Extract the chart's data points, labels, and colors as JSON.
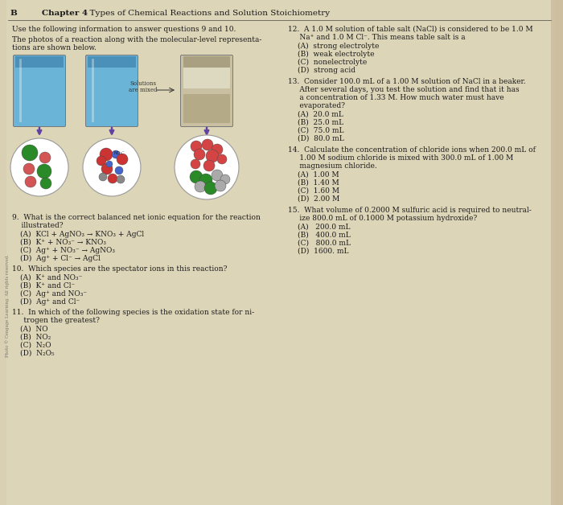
{
  "page_bg": "#ddd5b8",
  "text_color": "#1a1a1a",
  "header": {
    "left_bold": "B",
    "chapter_bold": "Chapter 4",
    "chapter_normal": "  Types of Chemical Reactions and Solution Stoichiometry"
  },
  "left_intro1": "Use the following information to answer questions 9 and 10.",
  "left_intro2a": "The photos of a reaction along with the molecular-level representa-",
  "left_intro2b": "tions are shown below.",
  "q9_stem1": "9.  What is the correct balanced net ionic equation for the reaction",
  "q9_stem2": "    illustrated?",
  "q9_a": "(A)  KCl + AgNO₃ → KNO₃ + AgCl",
  "q9_b": "(B)  K⁺ + NO₃⁻ → KNO₃",
  "q9_c": "(C)  Ag⁺ + NO₃⁻ → AgNO₃",
  "q9_d": "(D)  Ag⁺ + Cl⁻ → AgCl",
  "q10_stem": "10.  Which species are the spectator ions in this reaction?",
  "q10_a": "(A)  K⁺ and NO₃⁻",
  "q10_b": "(B)  K⁺ and Cl⁻",
  "q10_c": "(C)  Ag⁺ and NO₃⁻",
  "q10_d": "(D)  Ag⁺ and Cl⁻",
  "q11_stem1": "11.  In which of the following species is the oxidation state for ni-",
  "q11_stem2": "     trogen the greatest?",
  "q11_a": "(A)  NO",
  "q11_b": "(B)  NO₂",
  "q11_c": "(C)  N₂O",
  "q11_d": "(D)  N₂O₅",
  "q12_stem1": "12.  A 1.0 M solution of table salt (NaCl) is considered to be 1.0 M",
  "q12_stem2": "     Na⁺ and 1.0 M Cl⁻. This means table salt is a",
  "q12_a": "(A)  strong electrolyte",
  "q12_b": "(B)  weak electrolyte",
  "q12_c": "(C)  nonelectrolyte",
  "q12_d": "(D)  strong acid",
  "q13_stem1": "13.  Consider 100.0 mL of a 1.00 M solution of NaCl in a beaker.",
  "q13_stem2": "     After several days, you test the solution and find that it has",
  "q13_stem3": "     a concentration of 1.33 M. How much water must have",
  "q13_stem4": "     evaporated?",
  "q13_a": "(A)  20.0 mL",
  "q13_b": "(B)  25.0 mL",
  "q13_c": "(C)  75.0 mL",
  "q13_d": "(D)  80.0 mL",
  "q14_stem1": "14.  Calculate the concentration of chloride ions when 200.0 mL of",
  "q14_stem2": "     1.00 M sodium chloride is mixed with 300.0 mL of 1.00 M",
  "q14_stem3": "     magnesium chloride.",
  "q14_a": "(A)  1.00 M",
  "q14_b": "(B)  1.40 M",
  "q14_c": "(C)  1.60 M",
  "q14_d": "(D)  2.00 M",
  "q15_stem1": "15.  What volume of 0.2000 M sulfuric acid is required to neutral-",
  "q15_stem2": "     ize 800.0 mL of 0.1000 M potassium hydroxide?",
  "q15_a": "(A)   200.0 mL",
  "q15_b": "(B)   400.0 mL",
  "q15_c": "(C)   800.0 mL",
  "q15_d": "(D)  1600. mL",
  "watermark": "Photo © Cengage Learning. All rights reserved."
}
